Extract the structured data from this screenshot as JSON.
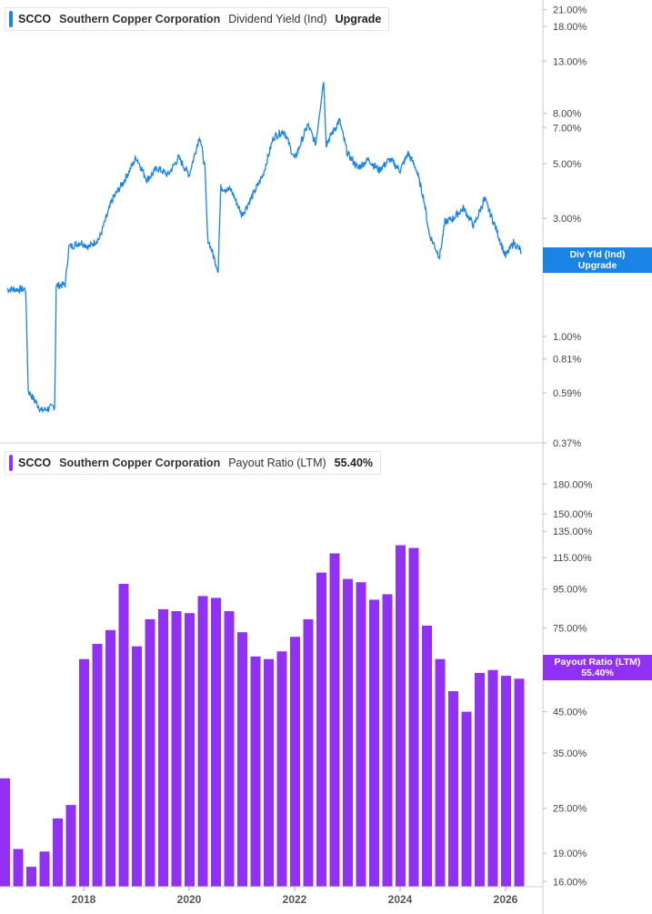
{
  "chart_data": [
    {
      "type": "line",
      "ticker": "SCCO",
      "company": "Southern Copper Corporation",
      "metric": "Dividend Yield (Ind)",
      "legend_value": "Upgrade",
      "tag_line1": "Div Yld (Ind)",
      "tag_line2": "Upgrade",
      "color": "#1a83e6",
      "yscale": "log",
      "ylim": [
        0.37,
        23
      ],
      "yticks": [
        "21.00%",
        "18.00%",
        "13.00%",
        "8.00%",
        "7.00%",
        "5.00%",
        "3.00%",
        "1.00%",
        "0.81%",
        "0.59%",
        "0.37%"
      ],
      "points": [
        [
          2016.55,
          1.55
        ],
        [
          2016.9,
          1.55
        ],
        [
          2016.95,
          0.6
        ],
        [
          2017.2,
          0.5
        ],
        [
          2017.45,
          0.52
        ],
        [
          2017.48,
          1.6
        ],
        [
          2017.65,
          1.62
        ],
        [
          2017.72,
          2.3
        ],
        [
          2017.95,
          2.4
        ],
        [
          2018.1,
          2.3
        ],
        [
          2018.3,
          2.5
        ],
        [
          2018.55,
          3.6
        ],
        [
          2018.75,
          4.2
        ],
        [
          2019.0,
          5.3
        ],
        [
          2019.2,
          4.3
        ],
        [
          2019.4,
          4.8
        ],
        [
          2019.6,
          4.5
        ],
        [
          2019.8,
          5.3
        ],
        [
          2020.0,
          4.5
        ],
        [
          2020.2,
          6.5
        ],
        [
          2020.3,
          4.8
        ],
        [
          2020.35,
          2.5
        ],
        [
          2020.55,
          1.85
        ],
        [
          2020.6,
          4.0
        ],
        [
          2020.8,
          3.9
        ],
        [
          2021.0,
          3.1
        ],
        [
          2021.2,
          3.7
        ],
        [
          2021.4,
          4.5
        ],
        [
          2021.6,
          6.4
        ],
        [
          2021.8,
          6.8
        ],
        [
          2022.0,
          5.2
        ],
        [
          2022.25,
          7.2
        ],
        [
          2022.4,
          6.0
        ],
        [
          2022.55,
          11.0
        ],
        [
          2022.6,
          6.0
        ],
        [
          2022.85,
          7.5
        ],
        [
          2023.0,
          5.5
        ],
        [
          2023.2,
          4.8
        ],
        [
          2023.4,
          5.2
        ],
        [
          2023.6,
          4.7
        ],
        [
          2023.8,
          5.2
        ],
        [
          2024.0,
          4.7
        ],
        [
          2024.15,
          5.5
        ],
        [
          2024.3,
          4.8
        ],
        [
          2024.45,
          3.6
        ],
        [
          2024.55,
          2.6
        ],
        [
          2024.75,
          2.1
        ],
        [
          2024.85,
          2.9
        ],
        [
          2025.0,
          3.0
        ],
        [
          2025.2,
          3.3
        ],
        [
          2025.4,
          2.8
        ],
        [
          2025.6,
          3.6
        ],
        [
          2025.8,
          2.8
        ],
        [
          2026.0,
          2.1
        ],
        [
          2026.15,
          2.4
        ],
        [
          2026.3,
          2.2
        ]
      ]
    },
    {
      "type": "bar",
      "ticker": "SCCO",
      "company": "Southern Copper Corporation",
      "metric": "Payout Ratio (LTM)",
      "legend_value": "55.40%",
      "tag_line1": "Payout Ratio (LTM)",
      "tag_line2": "55.40%",
      "color": "#9131f5",
      "yscale": "log",
      "ylim": [
        15.5,
        230
      ],
      "yticks": [
        "180.00%",
        "150.00%",
        "135.00%",
        "115.00%",
        "95.00%",
        "75.00%",
        "45.00%",
        "35.00%",
        "25.00%",
        "19.00%",
        "16.00%"
      ],
      "x": [
        2016.5,
        2016.75,
        2017.0,
        2017.25,
        2017.5,
        2017.75,
        2018.0,
        2018.25,
        2018.5,
        2018.75,
        2019.0,
        2019.25,
        2019.5,
        2019.75,
        2020.0,
        2020.25,
        2020.5,
        2020.75,
        2021.0,
        2021.25,
        2021.5,
        2021.75,
        2022.0,
        2022.25,
        2022.5,
        2022.75,
        2023.0,
        2023.25,
        2023.5,
        2023.75,
        2024.0,
        2024.25,
        2024.5,
        2024.75,
        2025.0,
        2025.25,
        2025.5,
        2025.75,
        2026.0,
        2026.25
      ],
      "values": [
        30,
        19.5,
        17.5,
        19.2,
        23.5,
        25.5,
        62,
        68,
        74,
        98,
        67,
        79,
        84,
        83,
        82,
        91,
        90,
        83,
        73,
        63,
        62,
        65,
        71,
        79,
        105,
        118,
        101,
        99,
        89,
        92,
        124,
        122,
        76,
        62,
        51,
        45,
        57,
        58,
        56,
        55
      ],
      "xticks": [
        "2018",
        "2020",
        "2022",
        "2024",
        "2026"
      ]
    }
  ]
}
